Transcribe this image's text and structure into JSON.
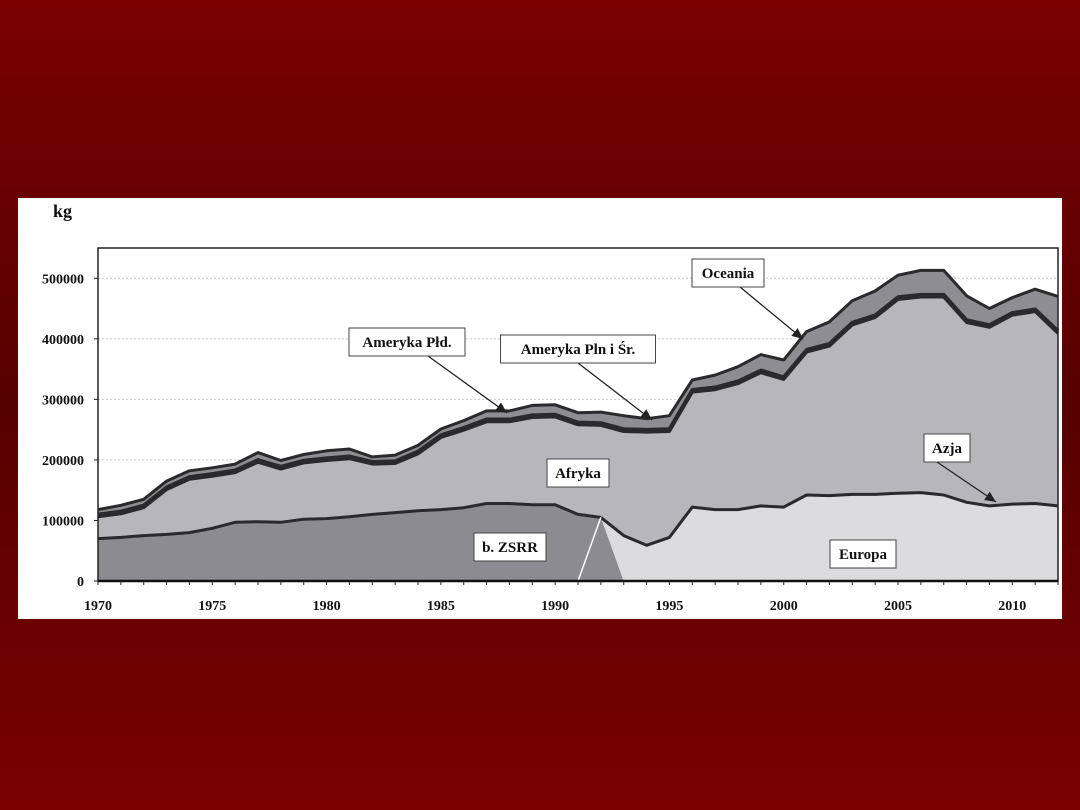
{
  "chart_data": {
    "type": "area",
    "ylabel": "kg",
    "ylim": [
      0,
      550000
    ],
    "xlim": [
      1970,
      2012
    ],
    "x_ticks": [
      "1970",
      "1975",
      "1980",
      "1985",
      "1990",
      "1995",
      "2000",
      "2005",
      "2010"
    ],
    "y_ticks": [
      "0",
      "100000",
      "200000",
      "300000",
      "400000",
      "500000"
    ],
    "y_tick_values": [
      0,
      100000,
      200000,
      300000,
      400000,
      500000
    ],
    "grid": true,
    "x": [
      1970,
      1971,
      1972,
      1973,
      1974,
      1975,
      1976,
      1977,
      1978,
      1979,
      1980,
      1981,
      1982,
      1983,
      1984,
      1985,
      1986,
      1987,
      1988,
      1989,
      1990,
      1991,
      1992,
      1993,
      1994,
      1995,
      1996,
      1997,
      1998,
      1999,
      2000,
      2001,
      2002,
      2003,
      2004,
      2005,
      2006,
      2007,
      2008,
      2009,
      2010,
      2011,
      2012
    ],
    "series": [
      {
        "name": "b. ZSRR",
        "color": "#8c8c90",
        "values": [
          70000,
          72000,
          75000,
          77000,
          80000,
          87000,
          97000,
          98000,
          97000,
          102000,
          103000,
          106000,
          110000,
          113000,
          116000,
          118000,
          121000,
          128000,
          128000,
          126000,
          126000,
          110000,
          105000,
          0,
          0,
          0,
          0,
          0,
          0,
          0,
          0,
          0,
          0,
          0,
          0,
          0,
          0,
          0,
          0,
          0,
          0,
          0,
          0
        ]
      },
      {
        "name": "Europa",
        "color": "#dcdcde",
        "values": [
          0,
          0,
          0,
          0,
          0,
          0,
          0,
          0,
          0,
          0,
          0,
          0,
          0,
          0,
          0,
          0,
          0,
          0,
          0,
          0,
          0,
          0,
          0,
          75000,
          59000,
          72000,
          122000,
          118000,
          118000,
          124000,
          122000,
          142000,
          141000,
          143000,
          143000,
          145000,
          146000,
          142000,
          130000,
          124000,
          127000,
          128000,
          124000
        ]
      },
      {
        "name": "Azja",
        "color": "#3a3a3e",
        "values": [
          0,
          0,
          0,
          0,
          0,
          0,
          0,
          0,
          0,
          0,
          0,
          0,
          0,
          0,
          0,
          0,
          0,
          0,
          0,
          0,
          0,
          0,
          0,
          0,
          0,
          0,
          0,
          0,
          0,
          0,
          0,
          0,
          0,
          0,
          0,
          0,
          0,
          0,
          0,
          0,
          0,
          0,
          0
        ]
      },
      {
        "name": "Afryka",
        "color": "#b7b7bb",
        "values": [
          36000,
          39000,
          46000,
          74000,
          88000,
          86000,
          82000,
          98000,
          88000,
          93000,
          96000,
          96000,
          83000,
          81000,
          94000,
          119000,
          128000,
          135000,
          135000,
          144000,
          145000,
          148000,
          152000,
          172000,
          187000,
          175000,
          190000,
          198000,
          208000,
          220000,
          211000,
          236000,
          247000,
          280000,
          292000,
          320000,
          323000,
          327000,
          297000,
          295000,
          312000,
          317000,
          285000
        ]
      },
      {
        "name": "Ameryka Płd.",
        "color": "#333336",
        "values": [
          4000,
          4000,
          4000,
          4000,
          4000,
          4000,
          4000,
          4000,
          4000,
          4000,
          4000,
          4000,
          4000,
          4000,
          4000,
          4000,
          4000,
          4000,
          4000,
          4000,
          4000,
          4000,
          4000,
          4000,
          4000,
          4000,
          4000,
          4000,
          4000,
          4000,
          4000,
          4000,
          4000,
          4000,
          4000,
          4000,
          4000,
          4000,
          4000,
          4000,
          4000,
          4000,
          4000
        ]
      },
      {
        "name": "Ameryka Pln i Śr.",
        "color": "#8e8e92",
        "values": [
          8000,
          10000,
          10000,
          10000,
          10000,
          10000,
          10000,
          12000,
          10000,
          10000,
          12000,
          12000,
          8000,
          10000,
          10000,
          10000,
          12000,
          14000,
          14000,
          16000,
          16000,
          16000,
          18000,
          22000,
          18000,
          22000,
          16000,
          20000,
          24000,
          26000,
          28000,
          30000,
          36000,
          36000,
          40000,
          36000,
          40000,
          40000,
          40000,
          27000,
          25000,
          33000,
          57000
        ]
      },
      {
        "name": "Oceania",
        "color": "#555558",
        "values": [
          0,
          0,
          0,
          0,
          0,
          0,
          0,
          0,
          0,
          0,
          0,
          0,
          0,
          0,
          0,
          0,
          0,
          0,
          0,
          0,
          0,
          0,
          0,
          0,
          0,
          0,
          0,
          0,
          0,
          0,
          0,
          0,
          0,
          0,
          0,
          0,
          0,
          0,
          0,
          0,
          0,
          0,
          0
        ]
      }
    ],
    "annotations": [
      {
        "label": "Oceania",
        "points_to_x": 1995
      },
      {
        "label": "Ameryka Płd.",
        "points_to_x": 1988
      },
      {
        "label": "Ameryka Pln i Śr.",
        "points_to_x": 1994
      },
      {
        "label": "Azja",
        "points_to_x": 2009
      },
      {
        "label": "Afryka"
      },
      {
        "label": "b. ZSRR"
      },
      {
        "label": "Europa"
      }
    ]
  }
}
